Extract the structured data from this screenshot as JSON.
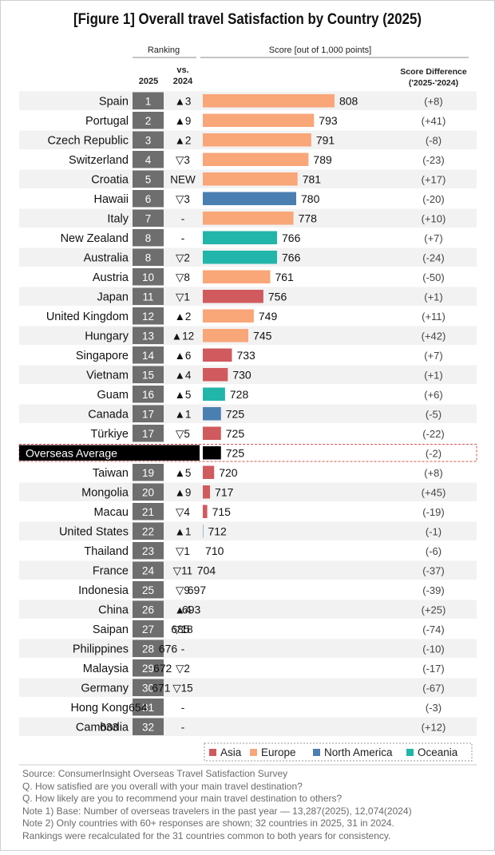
{
  "chart_data": {
    "type": "bar",
    "title": "[Figure 1] Overall travel Satisfaction by Country (2025)",
    "header": {
      "ranking": "Ranking",
      "year_2025": "2025",
      "vs": "vs.",
      "year_2024": "2024",
      "score": "Score [out of 1,000 points]",
      "diff_line1": "Score Difference",
      "diff_line2": "('2025-'2024)"
    },
    "region_colors": {
      "Asia": "#d05a5e",
      "Europe": "#f9a679",
      "North America": "#4a7fb2",
      "Oceania": "#22b5aa"
    },
    "legend": [
      "Asia",
      "Europe",
      "North America",
      "Oceania"
    ],
    "xlim": [
      0,
      1000
    ],
    "rows": [
      {
        "country": "Spain",
        "rank": "1",
        "change": "▲3",
        "score": 808,
        "diff": "(+8)",
        "region": "Europe"
      },
      {
        "country": "Portugal",
        "rank": "2",
        "change": "▲9",
        "score": 793,
        "diff": "(+41)",
        "region": "Europe"
      },
      {
        "country": "Czech Republic",
        "rank": "3",
        "change": "▲2",
        "score": 791,
        "diff": "(-8)",
        "region": "Europe"
      },
      {
        "country": "Switzerland",
        "rank": "4",
        "change": "▽3",
        "score": 789,
        "diff": "(-23)",
        "region": "Europe"
      },
      {
        "country": "Croatia",
        "rank": "5",
        "change": "NEW",
        "score": 781,
        "diff": "(+17)",
        "region": "Europe"
      },
      {
        "country": "Hawaii",
        "rank": "6",
        "change": "▽3",
        "score": 780,
        "diff": "(-20)",
        "region": "North America"
      },
      {
        "country": "Italy",
        "rank": "7",
        "change": "-",
        "score": 778,
        "diff": "(+10)",
        "region": "Europe"
      },
      {
        "country": "New Zealand",
        "rank": "8",
        "change": "-",
        "score": 766,
        "diff": "(+7)",
        "region": "Oceania"
      },
      {
        "country": "Australia",
        "rank": "8",
        "change": "▽2",
        "score": 766,
        "diff": "(-24)",
        "region": "Oceania"
      },
      {
        "country": "Austria",
        "rank": "10",
        "change": "▽8",
        "score": 761,
        "diff": "(-50)",
        "region": "Europe"
      },
      {
        "country": "Japan",
        "rank": "11",
        "change": "▽1",
        "score": 756,
        "diff": "(+1)",
        "region": "Asia"
      },
      {
        "country": "United Kingdom",
        "rank": "12",
        "change": "▲2",
        "score": 749,
        "diff": "(+11)",
        "region": "Europe"
      },
      {
        "country": "Hungary",
        "rank": "13",
        "change": "▲12",
        "score": 745,
        "diff": "(+42)",
        "region": "Europe"
      },
      {
        "country": "Singapore",
        "rank": "14",
        "change": "▲6",
        "score": 733,
        "diff": "(+7)",
        "region": "Asia"
      },
      {
        "country": "Vietnam",
        "rank": "15",
        "change": "▲4",
        "score": 730,
        "diff": "(+1)",
        "region": "Asia"
      },
      {
        "country": "Guam",
        "rank": "16",
        "change": "▲5",
        "score": 728,
        "diff": "(+6)",
        "region": "Oceania"
      },
      {
        "country": "Canada",
        "rank": "17",
        "change": "▲1",
        "score": 725,
        "diff": "(-5)",
        "region": "North America"
      },
      {
        "country": "Türkiye",
        "rank": "17",
        "change": "▽5",
        "score": 725,
        "diff": "(-22)",
        "region": "Asia"
      },
      {
        "country": "Overseas Average",
        "rank": "",
        "change": "",
        "score": 725,
        "diff": "(-2)",
        "region": "Average",
        "average": true
      },
      {
        "country": "Taiwan",
        "rank": "19",
        "change": "▲5",
        "score": 720,
        "diff": "(+8)",
        "region": "Asia"
      },
      {
        "country": "Mongolia",
        "rank": "20",
        "change": "▲9",
        "score": 717,
        "diff": "(+45)",
        "region": "Asia"
      },
      {
        "country": "Macau",
        "rank": "21",
        "change": "▽4",
        "score": 715,
        "diff": "(-19)",
        "region": "Asia"
      },
      {
        "country": "United States",
        "rank": "22",
        "change": "▲1",
        "score": 712,
        "diff": "(-1)",
        "region": "North America"
      },
      {
        "country": "Thailand",
        "rank": "23",
        "change": "▽1",
        "score": 710,
        "diff": "(-6)",
        "region": "Asia"
      },
      {
        "country": "France",
        "rank": "24",
        "change": "▽11",
        "score": 704,
        "diff": "(-37)",
        "region": "Europe"
      },
      {
        "country": "Indonesia",
        "rank": "25",
        "change": "▽9",
        "score": 697,
        "diff": "(-39)",
        "region": "Asia"
      },
      {
        "country": "China",
        "rank": "26",
        "change": "▲4",
        "score": 693,
        "diff": "(+25)",
        "region": "Asia"
      },
      {
        "country": "Saipan",
        "rank": "27",
        "change": "▽18",
        "score": 685,
        "diff": "(-74)",
        "region": "Oceania"
      },
      {
        "country": "Philippines",
        "rank": "28",
        "change": "-",
        "score": 676,
        "diff": "(-10)",
        "region": "Asia"
      },
      {
        "country": "Malaysia",
        "rank": "29",
        "change": "▽2",
        "score": 672,
        "diff": "(-17)",
        "region": "Asia"
      },
      {
        "country": "Germany",
        "rank": "30",
        "change": "▽15",
        "score": 671,
        "diff": "(-67)",
        "region": "Europe"
      },
      {
        "country": "Hong Kong",
        "rank": "31",
        "change": "-",
        "score": 654,
        "diff": "(-3)",
        "region": "Asia"
      },
      {
        "country": "Cambodia",
        "rank": "32",
        "change": "-",
        "score": 633,
        "diff": "(+12)",
        "region": "Asia"
      }
    ]
  },
  "notes": [
    "Source: ConsumerInsight Overseas Travel Satisfaction Survey",
    "Q. How satisfied are you overall with your main travel destination?",
    "Q. How likely are you to recommend your main travel destination to others?",
    "Note 1) Base: Number of overseas travelers in the past year — 13,287(2025), 12,074(2024)",
    "Note 2) Only countries with 60+ responses are shown; 32 countries in 2025, 31 in 2024.",
    "Rankings were recalculated for the 31 countries common to both years for consistency."
  ]
}
